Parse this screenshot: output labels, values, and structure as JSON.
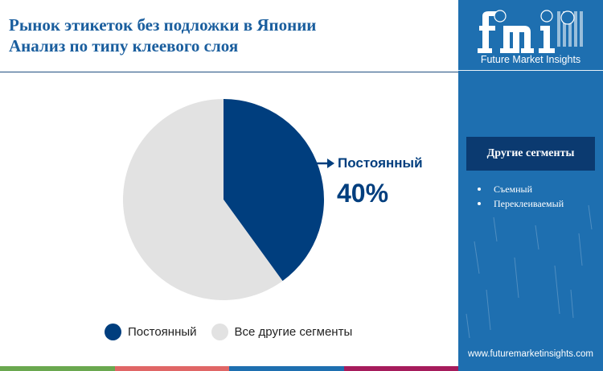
{
  "title": {
    "line1": "Рынок этикеток без подложки в Японии",
    "line2": "Анализ по типу клеевого слоя"
  },
  "chart_data": {
    "type": "pie",
    "categories": [
      "Постоянный",
      "Все другие сегменты"
    ],
    "values": [
      40,
      60
    ],
    "colors": [
      "#003e7e",
      "#e2e2e2"
    ],
    "start_angle_deg": 0,
    "direction": "clockwise",
    "data_labels": [
      {
        "category": "Постоянный",
        "label": "Постоянный",
        "value_text": "40%"
      }
    ],
    "legend": {
      "position": "bottom",
      "items": [
        {
          "label": "Постоянный",
          "color": "#003e7e"
        },
        {
          "label": "Все другие сегменты",
          "color": "#e2e2e2"
        }
      ]
    }
  },
  "sidebar": {
    "brand": "Future Market Insights",
    "other_segments_title": "Другие сегменты",
    "other_segments": [
      "Съемный",
      "Переклеиваемый"
    ],
    "website": "www.futuremarketinsights.com"
  },
  "bottom_bar_colors": [
    "#6aa84f",
    "#e06666",
    "#1e6fb0",
    "#a61c5c"
  ]
}
